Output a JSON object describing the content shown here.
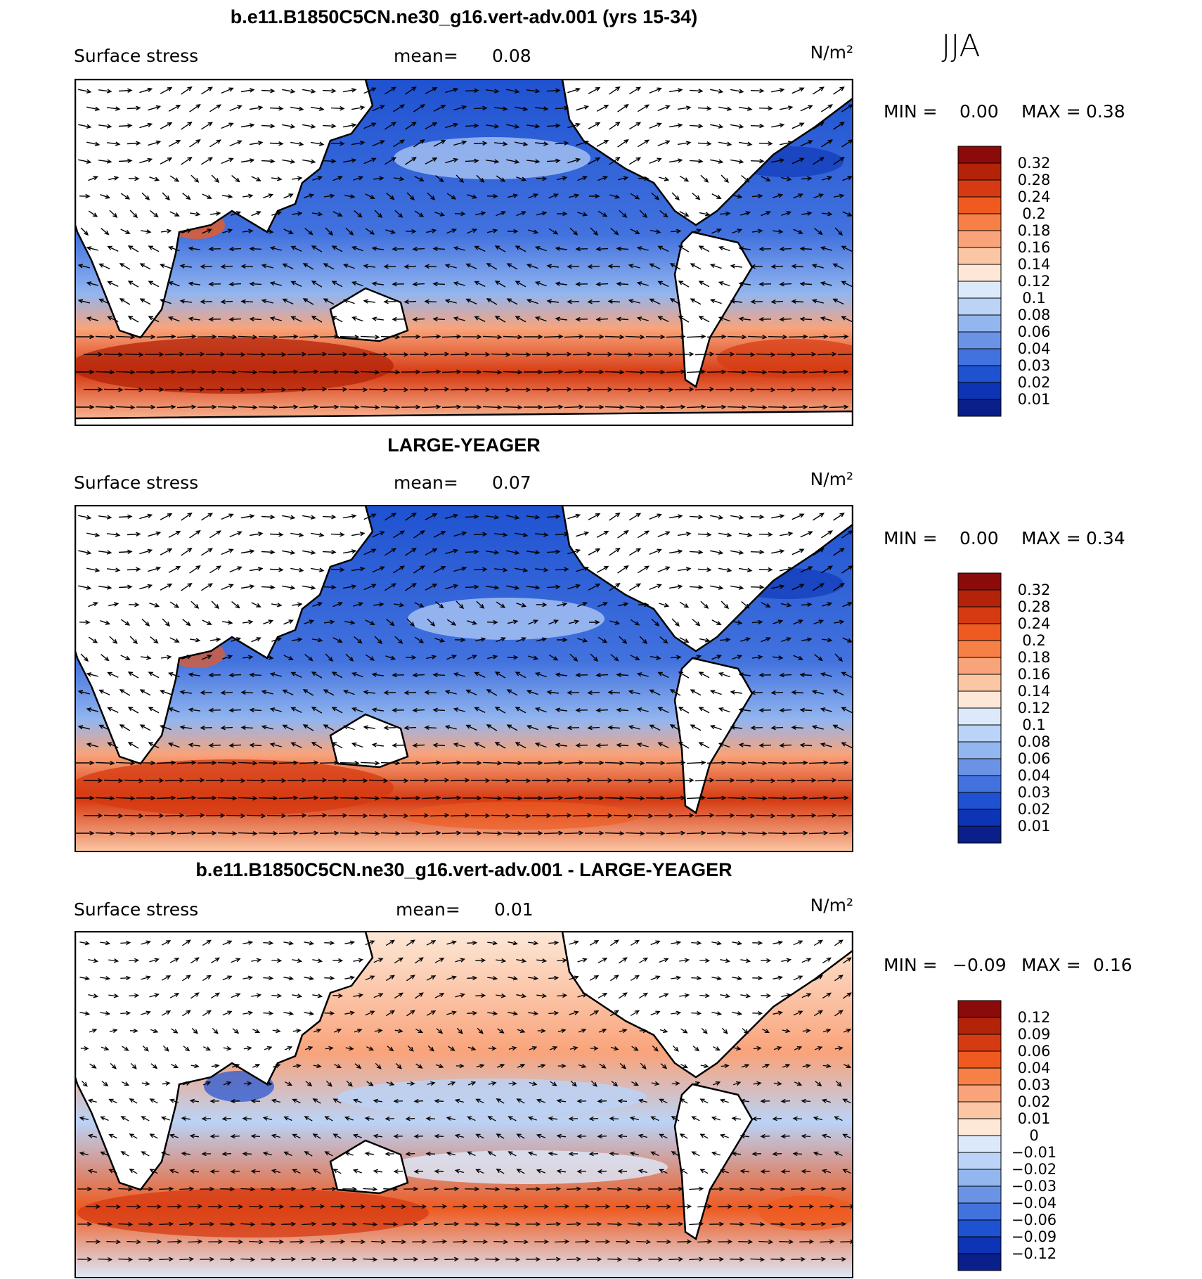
{
  "season": "JJA",
  "colors": {
    "frame": "#000000",
    "land": "#ffffff",
    "arrow": "#000000"
  },
  "chart_data": [
    {
      "type": "heatmap",
      "title": "b.e11.B1850C5CN.ne30_g16.vert-adv.001 (yrs 15-34)",
      "variable_label": "Surface stress",
      "mean_label": "mean=",
      "mean_value": "0.08",
      "units": "N/m²",
      "min_label": "MIN =",
      "min_value": "0.00",
      "max_label": "MAX =",
      "max_value": "0.38",
      "colorbar": {
        "labels": [
          "0.32",
          "0.28",
          "0.24",
          "0.2",
          "0.18",
          "0.16",
          "0.14",
          "0.12",
          "0.1",
          "0.08",
          "0.06",
          "0.04",
          "0.03",
          "0.02",
          "0.01"
        ],
        "colors": [
          "#8b0a0a",
          "#b32309",
          "#d63a12",
          "#ee5a20",
          "#f68045",
          "#f9a37a",
          "#fbc6a4",
          "#fde8d7",
          "#dce9fb",
          "#bad3f7",
          "#93b6ef",
          "#6a93e6",
          "#4272de",
          "#1f52d1",
          "#0d34b4",
          "#0a1f8a"
        ]
      }
    },
    {
      "type": "heatmap",
      "title": "LARGE-YEAGER",
      "variable_label": "Surface stress",
      "mean_label": "mean=",
      "mean_value": "0.07",
      "units": "N/m²",
      "min_label": "MIN =",
      "min_value": "0.00",
      "max_label": "MAX =",
      "max_value": "0.34",
      "colorbar": {
        "labels": [
          "0.32",
          "0.28",
          "0.24",
          "0.2",
          "0.18",
          "0.16",
          "0.14",
          "0.12",
          "0.1",
          "0.08",
          "0.06",
          "0.04",
          "0.03",
          "0.02",
          "0.01"
        ],
        "colors": [
          "#8b0a0a",
          "#b32309",
          "#d63a12",
          "#ee5a20",
          "#f68045",
          "#f9a37a",
          "#fbc6a4",
          "#fde8d7",
          "#dce9fb",
          "#bad3f7",
          "#93b6ef",
          "#6a93e6",
          "#4272de",
          "#1f52d1",
          "#0d34b4",
          "#0a1f8a"
        ]
      }
    },
    {
      "type": "heatmap",
      "title": "b.e11.B1850C5CN.ne30_g16.vert-adv.001 - LARGE-YEAGER",
      "variable_label": "Surface stress",
      "mean_label": "mean=",
      "mean_value": "0.01",
      "units": "N/m²",
      "min_label": "MIN =",
      "min_value": "−0.09",
      "max_label": "MAX =",
      "max_value": "0.16",
      "colorbar": {
        "labels": [
          "0.12",
          "0.09",
          "0.06",
          "0.04",
          "0.03",
          "0.02",
          "0.01",
          "0",
          "−0.01",
          "−0.02",
          "−0.03",
          "−0.04",
          "−0.06",
          "−0.09",
          "−0.12"
        ],
        "colors": [
          "#8b0a0a",
          "#b32309",
          "#d63a12",
          "#ee5a20",
          "#f68045",
          "#f9a37a",
          "#fbc6a4",
          "#fde8d7",
          "#dce9fb",
          "#bad3f7",
          "#93b6ef",
          "#6a93e6",
          "#4272de",
          "#1f52d1",
          "#0d34b4",
          "#0a1f8a"
        ]
      }
    }
  ]
}
